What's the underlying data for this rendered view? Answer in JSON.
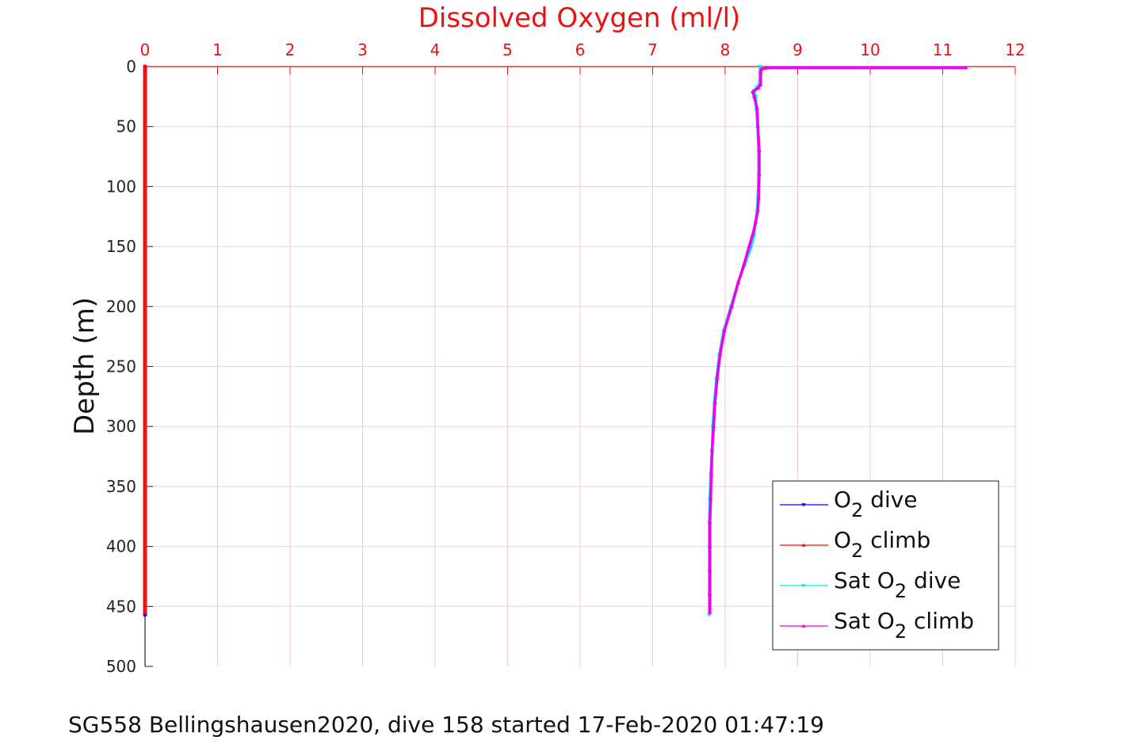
{
  "chart_data": {
    "type": "line",
    "title": "Dissolved Oxygen (ml/l)",
    "xlabel": "Dissolved Oxygen (ml/l)",
    "ylabel": "Depth (m)",
    "x_axis_position": "top",
    "y_reversed": true,
    "xlim": [
      0,
      12
    ],
    "ylim": [
      0,
      500
    ],
    "x_ticks": [
      "0",
      "1",
      "2",
      "3",
      "4",
      "5",
      "6",
      "7",
      "8",
      "9",
      "10",
      "11",
      "12"
    ],
    "y_ticks": [
      "0",
      "50",
      "100",
      "150",
      "200",
      "250",
      "300",
      "350",
      "400",
      "450",
      "500"
    ],
    "grid": true,
    "legend_position": "bottom-right",
    "title_color": "#ee1111",
    "x_tick_color": "#ee1111",
    "series": [
      {
        "name": "O2 dive",
        "color": "#0000ee",
        "marker": "triangle-down",
        "points": [
          [
            0,
            0
          ],
          [
            0,
            100
          ],
          [
            0,
            200
          ],
          [
            0,
            300
          ],
          [
            0,
            400
          ],
          [
            0,
            457
          ]
        ]
      },
      {
        "name": "O2 climb",
        "color": "#ee1111",
        "marker": "triangle-up",
        "points": [
          [
            0,
            455
          ],
          [
            0,
            350
          ],
          [
            0,
            250
          ],
          [
            0,
            150
          ],
          [
            0,
            50
          ],
          [
            0,
            0
          ]
        ]
      },
      {
        "name": "Sat O2 dive",
        "color": "#00eeee",
        "marker": "triangle-down",
        "points": [
          [
            8.48,
            0
          ],
          [
            8.48,
            5
          ],
          [
            8.47,
            15
          ],
          [
            8.44,
            17
          ],
          [
            8.4,
            20
          ],
          [
            8.42,
            25
          ],
          [
            8.43,
            35
          ],
          [
            8.45,
            50
          ],
          [
            8.46,
            70
          ],
          [
            8.46,
            90
          ],
          [
            8.45,
            110
          ],
          [
            8.44,
            120
          ],
          [
            8.42,
            130
          ],
          [
            8.4,
            140
          ],
          [
            8.36,
            150
          ],
          [
            8.27,
            165
          ],
          [
            8.18,
            180
          ],
          [
            8.08,
            200
          ],
          [
            7.98,
            220
          ],
          [
            7.92,
            240
          ],
          [
            7.88,
            260
          ],
          [
            7.85,
            280
          ],
          [
            7.83,
            300
          ],
          [
            7.82,
            320
          ],
          [
            7.8,
            340
          ],
          [
            7.79,
            360
          ],
          [
            7.78,
            380
          ],
          [
            7.78,
            400
          ],
          [
            7.78,
            420
          ],
          [
            7.78,
            440
          ],
          [
            7.78,
            457
          ]
        ]
      },
      {
        "name": "Sat O2 climb",
        "color": "#ee00ee",
        "marker": "triangle-up",
        "points": [
          [
            7.79,
            455
          ],
          [
            7.79,
            440
          ],
          [
            7.79,
            420
          ],
          [
            7.79,
            400
          ],
          [
            7.79,
            380
          ],
          [
            7.8,
            360
          ],
          [
            7.81,
            340
          ],
          [
            7.82,
            320
          ],
          [
            7.84,
            300
          ],
          [
            7.86,
            280
          ],
          [
            7.89,
            260
          ],
          [
            7.93,
            240
          ],
          [
            7.99,
            220
          ],
          [
            8.09,
            200
          ],
          [
            8.18,
            180
          ],
          [
            8.26,
            165
          ],
          [
            8.33,
            150
          ],
          [
            8.38,
            140
          ],
          [
            8.42,
            130
          ],
          [
            8.45,
            120
          ],
          [
            8.46,
            110
          ],
          [
            8.47,
            90
          ],
          [
            8.47,
            70
          ],
          [
            8.45,
            50
          ],
          [
            8.44,
            35
          ],
          [
            8.4,
            25
          ],
          [
            8.38,
            21
          ],
          [
            8.45,
            18
          ],
          [
            8.49,
            15
          ],
          [
            8.49,
            5
          ],
          [
            8.5,
            2
          ],
          [
            8.62,
            1
          ],
          [
            8.82,
            1
          ],
          [
            11.32,
            1
          ]
        ]
      }
    ]
  },
  "legend": {
    "entries": [
      {
        "pre": "O",
        "sub": "2",
        "post": " dive"
      },
      {
        "pre": "O",
        "sub": "2",
        "post": " climb"
      },
      {
        "pre": "Sat O",
        "sub": "2",
        "post": " dive"
      },
      {
        "pre": "Sat O",
        "sub": "2",
        "post": " climb"
      }
    ]
  },
  "footer": {
    "caption": "SG558 Bellingshausen2020, dive 158 started 17-Feb-2020 01:47:19"
  }
}
